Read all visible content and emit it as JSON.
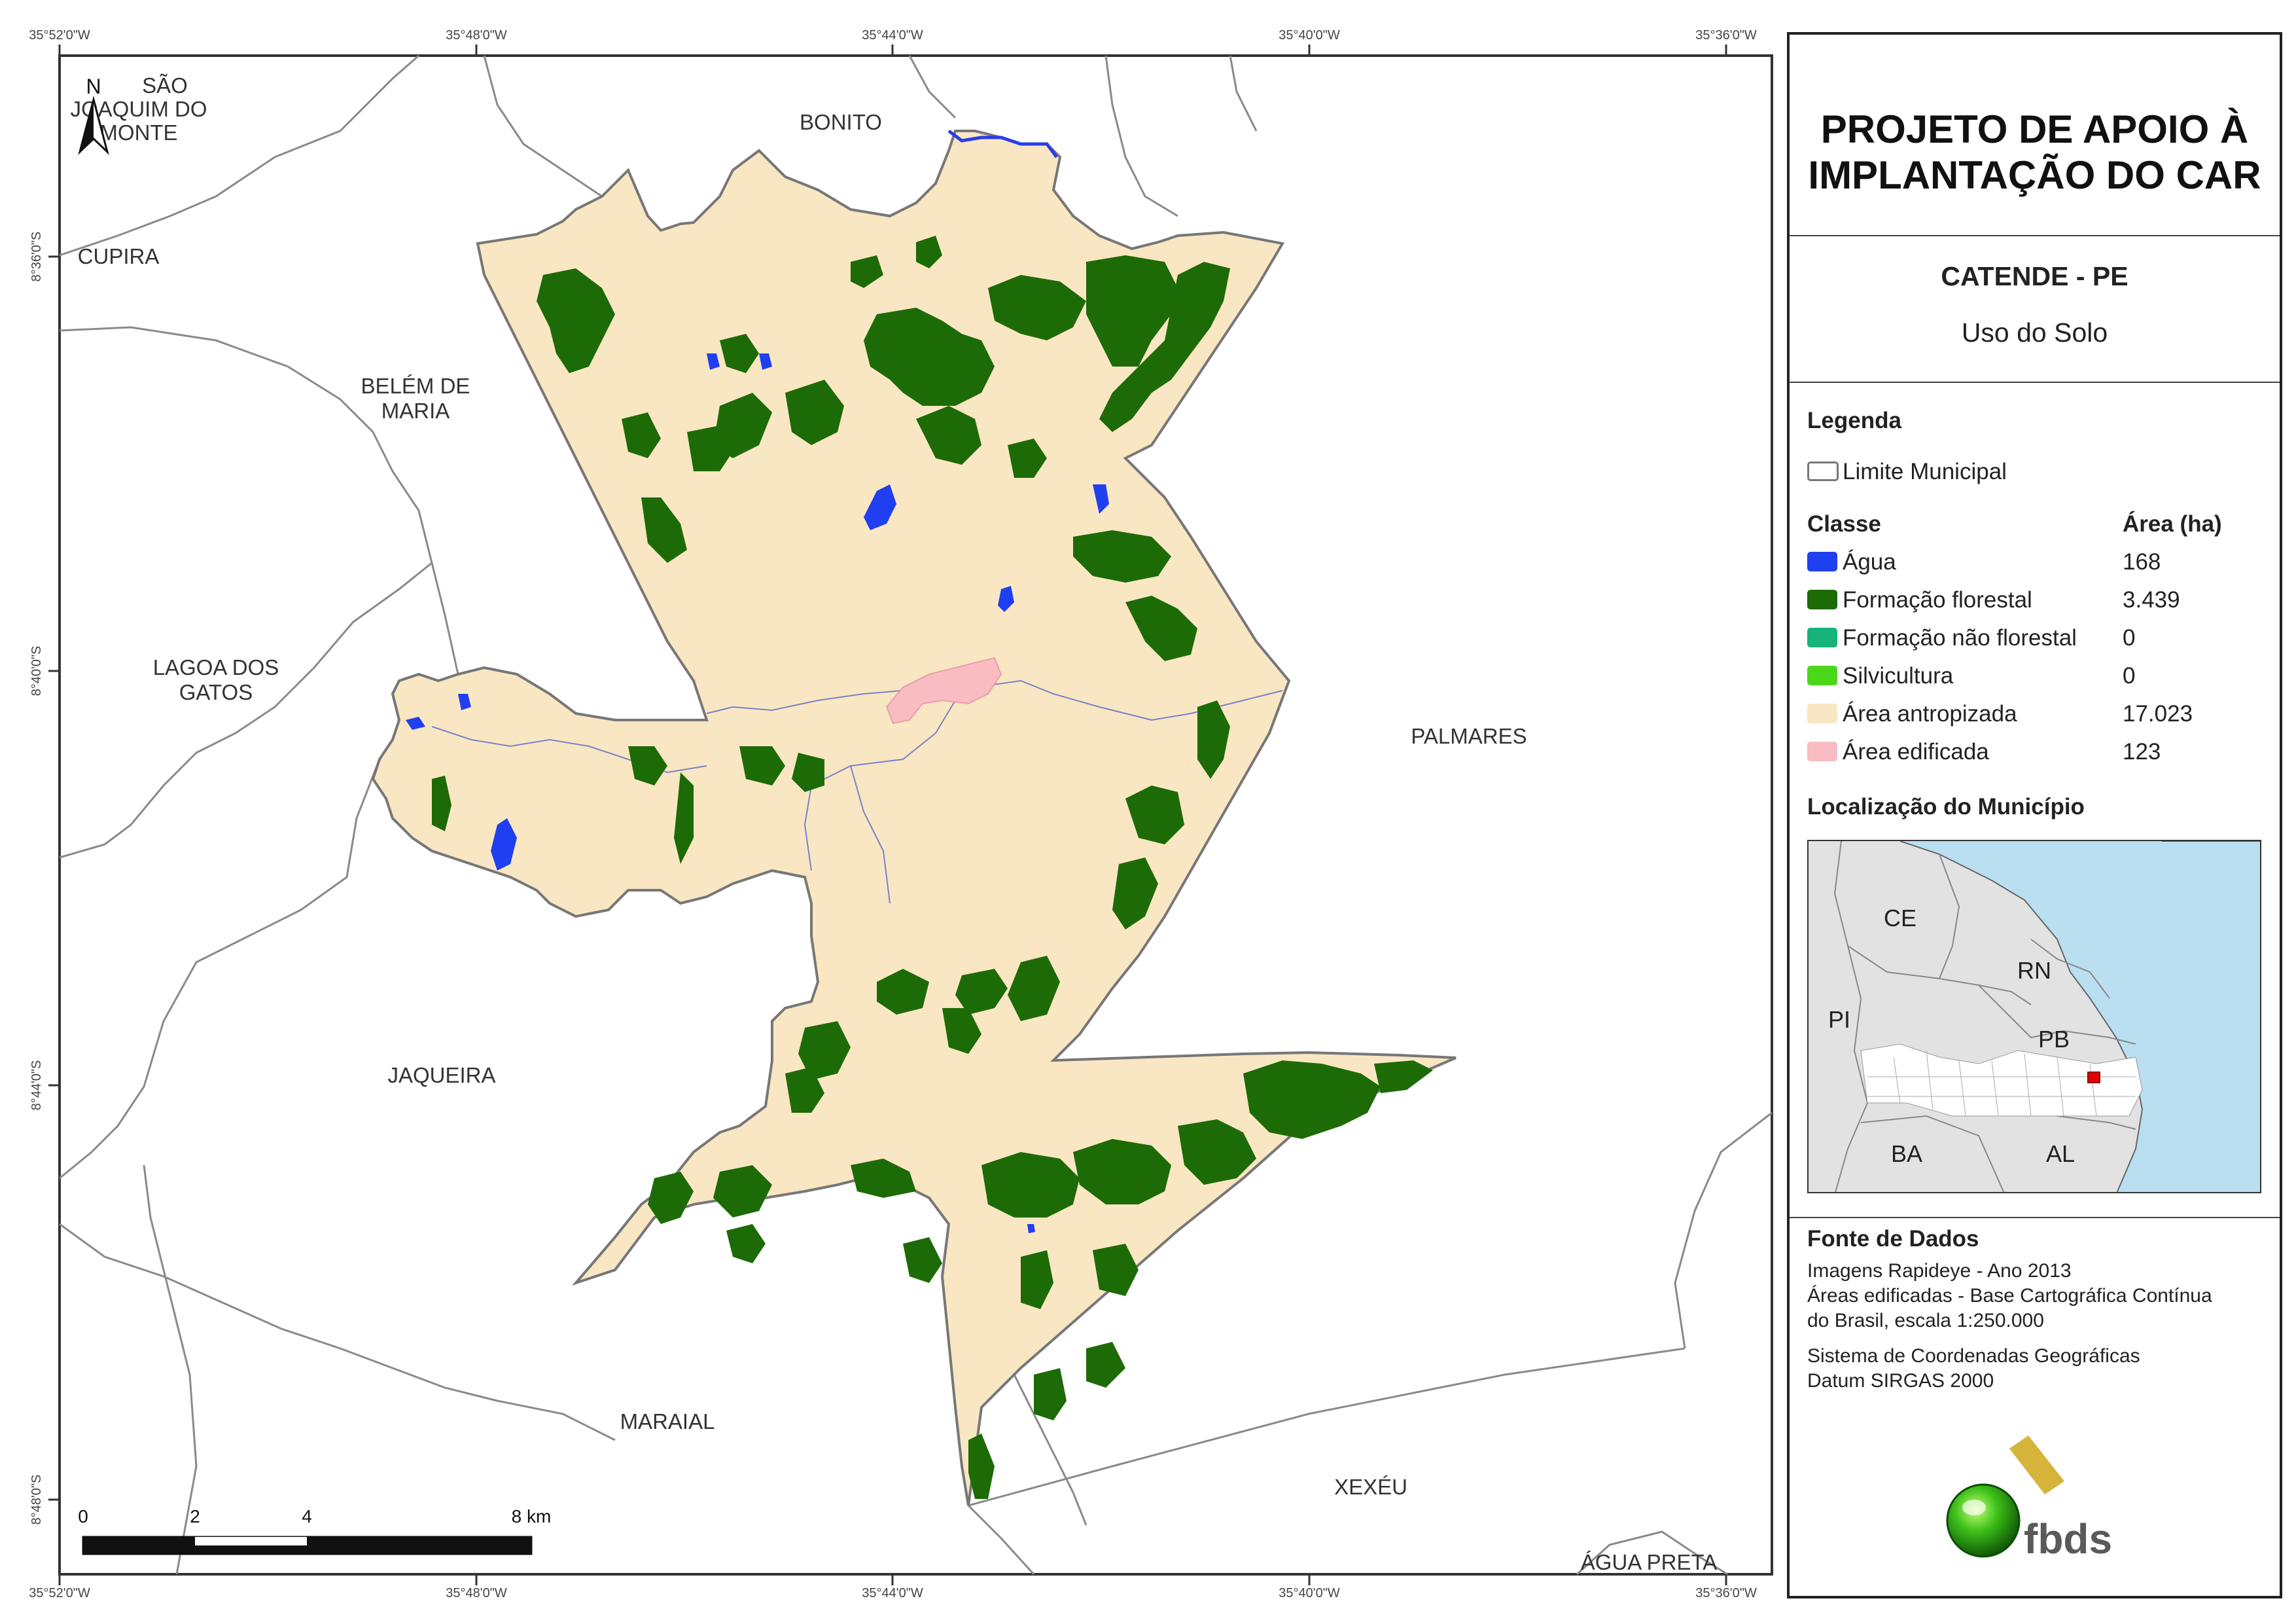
{
  "map": {
    "coords_top": [
      "35°52'0\"W",
      "35°48'0\"W",
      "35°44'0\"W",
      "35°40'0\"W",
      "35°36'0\"W"
    ],
    "coords_bottom": [
      "35°52'0\"W",
      "35°48'0\"W",
      "35°44'0\"W",
      "35°40'0\"W",
      "35°36'0\"W"
    ],
    "coords_lat": [
      "8°36'0\"S",
      "8°40'0\"S",
      "8°44'0\"S",
      "8°48'0\"S"
    ],
    "north_label": "N",
    "municipalities": {
      "sao_joaquim": [
        "SÃO",
        "JOAQUIM DO",
        "MONTE"
      ],
      "bonito": "BONITO",
      "cupira": "CUPIRA",
      "belem": [
        "BELÉM DE",
        "MARIA"
      ],
      "lagoa": [
        "LAGOA DOS",
        "GATOS"
      ],
      "palmares": "PALMARES",
      "jaqueira": "JAQUEIRA",
      "maraial": "MARAIAL",
      "xexeu": "XEXÉU",
      "agua_preta": "ÁGUA PRETA"
    },
    "scale": {
      "labels": [
        "0",
        "2",
        "4",
        "8 km"
      ]
    }
  },
  "panel": {
    "title": [
      "PROJETO DE APOIO À",
      "IMPLANTAÇÃO DO CAR"
    ],
    "municipality": "CATENDE - PE",
    "subtitle": "Uso do Solo",
    "legend_title": "Legenda",
    "limit_label": "Limite Municipal",
    "class_header": "Classe",
    "area_header": "Área (ha)",
    "classes": [
      {
        "name": "Água",
        "area": "168",
        "color": "#1f3ff0"
      },
      {
        "name": "Formação florestal",
        "area": "3.439",
        "color": "#1d6b07"
      },
      {
        "name": "Formação não florestal",
        "area": "0",
        "color": "#16b37a"
      },
      {
        "name": "Silvicultura",
        "area": "0",
        "color": "#4cd81a"
      },
      {
        "name": "Área antropizada",
        "area": "17.023",
        "color": "#f9e6c3"
      },
      {
        "name": "Área edificada",
        "area": "123",
        "color": "#f8bcc2"
      }
    ],
    "location_title": "Localização do Município",
    "inset_labels": {
      "ce": "CE",
      "rn": "RN",
      "pi": "PI",
      "pb": "PB",
      "ba": "BA",
      "al": "AL"
    },
    "source_title": "Fonte de Dados",
    "source_lines": [
      "Imagens Rapideye - Ano 2013",
      "Áreas edificadas - Base Cartográfica Contínua",
      "do Brasil, escala 1:250.000",
      "",
      "Sistema de Coordenadas Geográficas",
      "Datum SIRGAS 2000"
    ],
    "logo_text": "fbds"
  }
}
